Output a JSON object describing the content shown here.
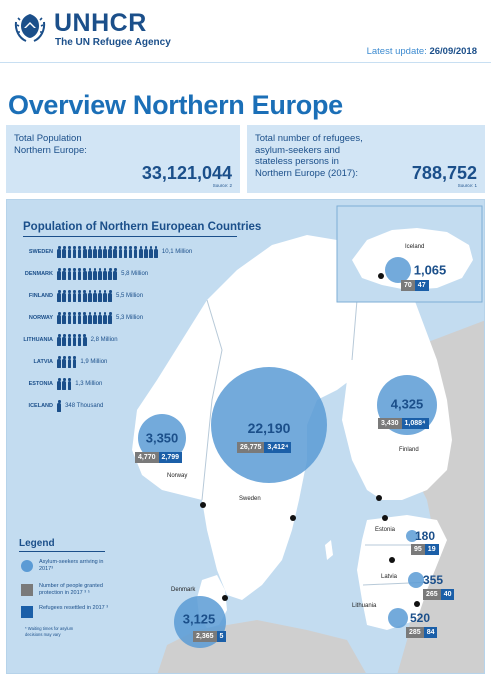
{
  "header": {
    "logo_text": "UNHCR",
    "logo_sub": "The UN Refugee Agency",
    "latest_label": "Latest update: ",
    "latest_date": "26/09/2018"
  },
  "page_title": "Overview Northern Europe",
  "stats": {
    "left": {
      "label": "Total Population Northern Europe:",
      "value": "33,121,044",
      "source": "Source: 2"
    },
    "right": {
      "label": "Total number of refugees, asylum-seekers and stateless persons in Northern Europe (2017):",
      "value": "788,752",
      "source": "Source: 1"
    }
  },
  "population": {
    "title": "Population of Northern European Countries",
    "rows": [
      {
        "country": "SWEDEN",
        "value": "10,1 Million",
        "icons": 20
      },
      {
        "country": "DENMARK",
        "value": "5,8 Million",
        "icons": 12
      },
      {
        "country": "FINLAND",
        "value": "5,5 Million",
        "icons": 11
      },
      {
        "country": "NORWAY",
        "value": "5,3 Million",
        "icons": 11
      },
      {
        "country": "LITHUANIA",
        "value": "2,8 Million",
        "icons": 6
      },
      {
        "country": "LATVIA",
        "value": "1,9 Million",
        "icons": 4
      },
      {
        "country": "ESTONIA",
        "value": "1,3 Million",
        "icons": 3
      },
      {
        "country": "ICELAND",
        "value": "348 Thousand",
        "icons": 1
      }
    ]
  },
  "countries": {
    "iceland": {
      "name": "Iceland",
      "asylum": "1,065",
      "protection": "70",
      "resettled": "47"
    },
    "norway": {
      "name": "Norway",
      "asylum": "3,350",
      "protection": "4,770",
      "resettled": "2,799"
    },
    "sweden": {
      "name": "Sweden",
      "asylum": "22,190",
      "protection": "26,775",
      "resettled": "3,412⁴"
    },
    "finland": {
      "name": "Finland",
      "asylum": "4,325",
      "protection": "3,430",
      "resettled": "1,088⁴"
    },
    "denmark": {
      "name": "Denmark",
      "asylum": "3,125",
      "protection": "2,365",
      "resettled": "5"
    },
    "estonia": {
      "name": "Estonia",
      "asylum": "180",
      "protection": "95",
      "resettled": "19"
    },
    "latvia": {
      "name": "Latvia",
      "asylum": "355",
      "protection": "265",
      "resettled": "40"
    },
    "lithuania": {
      "name": "Lithuania",
      "asylum": "520",
      "protection": "285",
      "resettled": "84"
    }
  },
  "legend": {
    "title": "Legend",
    "asylum": "Asylum-seekers arriving in 2017³",
    "protection": "Number of people granted protection in 2017 ³ ⁵",
    "resettled": "Refugees resettled in 2017 ³",
    "note": "* Waiting times for asylum decisions may vary"
  },
  "colors": {
    "brand": "#1b4f8a",
    "accent": "#1b6fb7",
    "bubble": "#5b9bd5",
    "sea": "#c3dcf0",
    "land": "#ffffff",
    "other_land": "#cccccc",
    "protection": "#7a7a7a",
    "resettled": "#1b5fa8"
  }
}
